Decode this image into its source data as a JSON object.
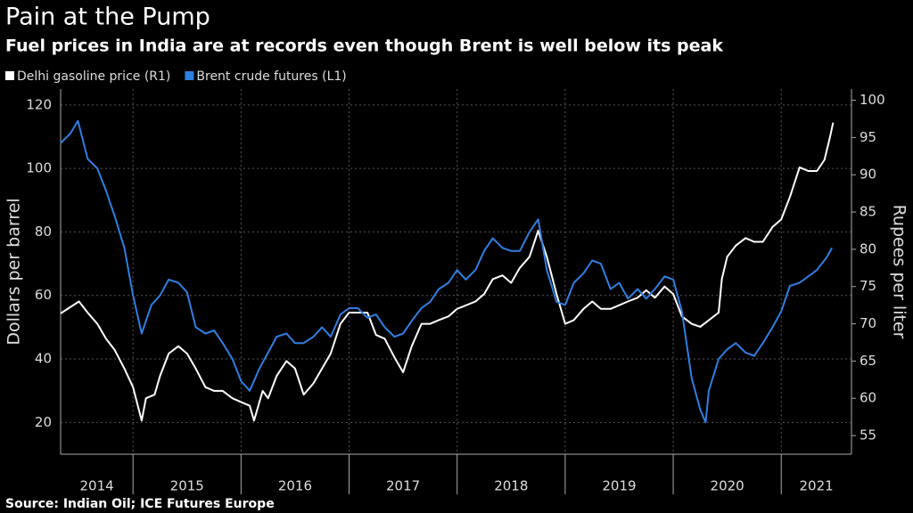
{
  "chart_data": {
    "type": "line",
    "title": "Pain at the Pump",
    "subtitle": "Fuel prices in India are at records even though Brent is well below its peak",
    "source": "Source: Indian Oil; ICE Futures Europe",
    "y_label": "Dollars per barrel",
    "y2_label": "Rupees per liter",
    "xlim": [
      2014.33,
      2021.65
    ],
    "xticks": [
      {
        "value": 2014,
        "label": "2014"
      },
      {
        "value": 2015,
        "label": "2015"
      },
      {
        "value": 2016,
        "label": "2016"
      },
      {
        "value": 2017,
        "label": "2017"
      },
      {
        "value": 2018,
        "label": "2018"
      },
      {
        "value": 2019,
        "label": "2019"
      },
      {
        "value": 2020,
        "label": "2020"
      },
      {
        "value": 2021,
        "label": "2021"
      }
    ],
    "ylim": [
      10,
      125
    ],
    "yticks": [
      20,
      40,
      60,
      80,
      100,
      120
    ],
    "y2lim": [
      52.5,
      101.5
    ],
    "y2ticks": [
      55,
      60,
      65,
      70,
      75,
      80,
      85,
      90,
      95,
      100
    ],
    "grid": true,
    "legend": "top-left",
    "series": [
      {
        "name": "Delhi gasoline price (R1)",
        "color": "#ffffff",
        "axis": "y2",
        "x": [
          2014.33,
          2014.5,
          2014.58,
          2014.67,
          2014.75,
          2014.83,
          2014.92,
          2015.0,
          2015.08,
          2015.12,
          2015.2,
          2015.25,
          2015.33,
          2015.42,
          2015.5,
          2015.58,
          2015.67,
          2015.75,
          2015.83,
          2015.92,
          2016.0,
          2016.08,
          2016.12,
          2016.2,
          2016.25,
          2016.33,
          2016.42,
          2016.5,
          2016.58,
          2016.67,
          2016.75,
          2016.83,
          2016.92,
          2017.0,
          2017.08,
          2017.17,
          2017.25,
          2017.33,
          2017.42,
          2017.5,
          2017.58,
          2017.67,
          2017.75,
          2017.83,
          2017.92,
          2018.0,
          2018.17,
          2018.25,
          2018.33,
          2018.42,
          2018.5,
          2018.58,
          2018.67,
          2018.75,
          2018.83,
          2018.92,
          2019.0,
          2019.08,
          2019.17,
          2019.25,
          2019.33,
          2019.42,
          2019.5,
          2019.58,
          2019.67,
          2019.75,
          2019.83,
          2019.92,
          2020.0,
          2020.08,
          2020.17,
          2020.25,
          2020.42,
          2020.45,
          2020.5,
          2020.58,
          2020.67,
          2020.75,
          2020.83,
          2020.92,
          2021.0,
          2021.08,
          2021.17,
          2021.25,
          2021.33,
          2021.4,
          2021.45,
          2021.48
        ],
        "values": [
          71.4,
          73,
          71.5,
          70,
          68,
          66.5,
          64,
          61.5,
          57,
          60,
          60.5,
          63,
          66,
          67,
          66,
          64,
          61.5,
          61,
          61,
          60,
          59.5,
          59,
          57,
          61,
          60,
          63,
          65,
          64,
          60.5,
          62,
          64,
          66,
          70,
          71.5,
          71.5,
          71.5,
          68.5,
          68,
          65.5,
          63.5,
          67,
          70,
          70,
          70.5,
          71,
          72,
          73,
          74,
          76,
          76.5,
          75.5,
          77.5,
          79,
          82.5,
          79,
          74,
          70,
          70.5,
          72,
          73,
          72,
          72,
          72.5,
          73,
          73.5,
          74.5,
          73.5,
          75,
          74,
          71,
          70,
          69.6,
          71.5,
          76,
          79,
          80.5,
          81.5,
          81,
          81,
          83,
          84,
          87,
          91,
          90.5,
          90.5,
          92,
          95,
          97
        ]
      },
      {
        "name": "Brent crude futures (L1)",
        "color": "#2f7fe0",
        "axis": "y",
        "x": [
          2014.33,
          2014.42,
          2014.49,
          2014.58,
          2014.67,
          2014.75,
          2014.83,
          2014.92,
          2015.0,
          2015.08,
          2015.17,
          2015.25,
          2015.33,
          2015.42,
          2015.5,
          2015.58,
          2015.67,
          2015.75,
          2015.83,
          2015.92,
          2016.0,
          2016.08,
          2016.17,
          2016.25,
          2016.33,
          2016.42,
          2016.5,
          2016.58,
          2016.67,
          2016.75,
          2016.83,
          2016.92,
          2017.0,
          2017.08,
          2017.17,
          2017.25,
          2017.33,
          2017.42,
          2017.5,
          2017.58,
          2017.67,
          2017.75,
          2017.83,
          2017.92,
          2018.0,
          2018.08,
          2018.17,
          2018.25,
          2018.33,
          2018.42,
          2018.5,
          2018.58,
          2018.67,
          2018.75,
          2018.83,
          2018.92,
          2019.0,
          2019.08,
          2019.17,
          2019.25,
          2019.33,
          2019.42,
          2019.5,
          2019.58,
          2019.67,
          2019.75,
          2019.83,
          2019.92,
          2020.0,
          2020.08,
          2020.17,
          2020.25,
          2020.3,
          2020.33,
          2020.42,
          2020.5,
          2020.58,
          2020.67,
          2020.75,
          2020.83,
          2020.92,
          2021.0,
          2021.08,
          2021.17,
          2021.25,
          2021.33,
          2021.42,
          2021.47
        ],
        "values": [
          108,
          111,
          115,
          103,
          100,
          93,
          85,
          75,
          60,
          48,
          57,
          60,
          65,
          64,
          61,
          50,
          48,
          49,
          45,
          40,
          33,
          30,
          37,
          42,
          47,
          48,
          45,
          45,
          47,
          50,
          47,
          54,
          56,
          56,
          53,
          54,
          50,
          47,
          48,
          52,
          56,
          58,
          62,
          64,
          68,
          65,
          68,
          74,
          78,
          75,
          74,
          74,
          80,
          84,
          68,
          58,
          57,
          64,
          67,
          71,
          70,
          62,
          64,
          59,
          62,
          59,
          62,
          66,
          65,
          55,
          34,
          24,
          20,
          30,
          40,
          43,
          45,
          42,
          41,
          45,
          50,
          55,
          63,
          64,
          66,
          68,
          72,
          75
        ]
      }
    ]
  }
}
